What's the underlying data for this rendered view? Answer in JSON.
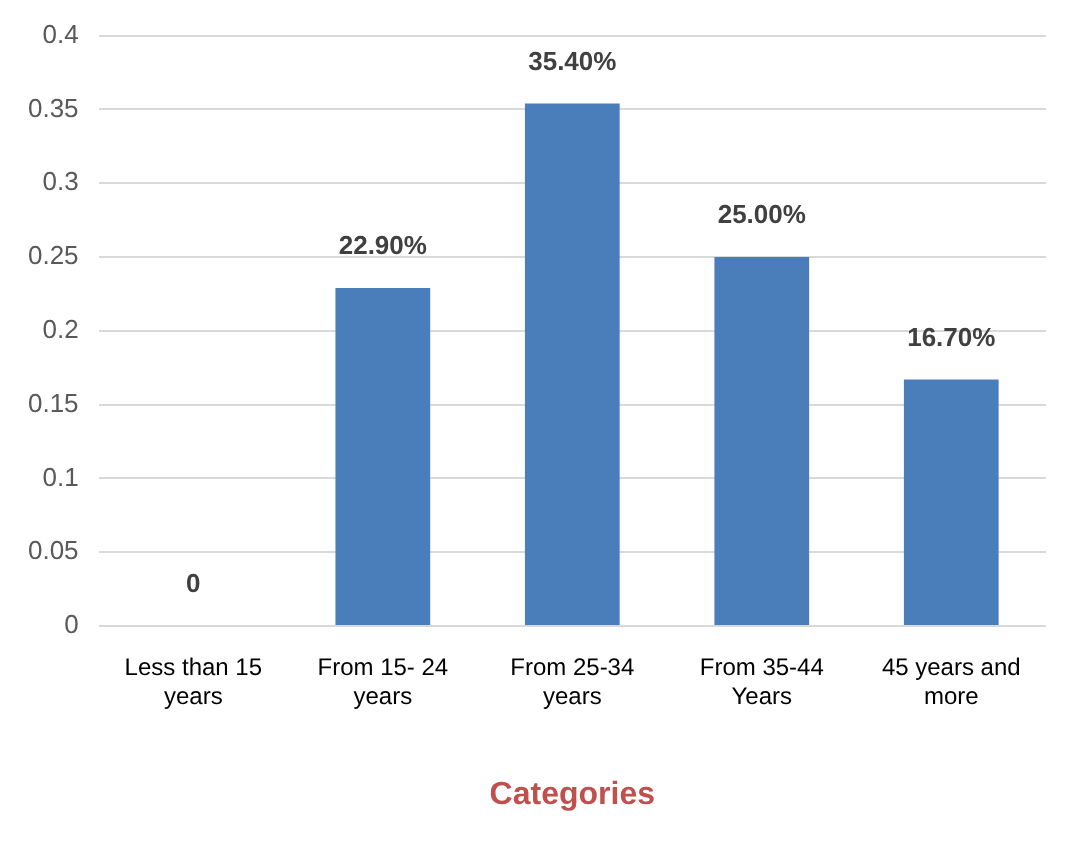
{
  "chart_data": {
    "type": "bar",
    "xlabel": "Categories",
    "categories": [
      "Less than 15 years",
      "From 15- 24 years",
      "From 25-34 years",
      "From 35-44 Years",
      "45 years and more"
    ],
    "values": [
      0,
      0.229,
      0.354,
      0.25,
      0.167
    ],
    "value_labels": [
      "0",
      "22.90%",
      "35.40%",
      "25.00%",
      "16.70%"
    ],
    "color": "#4a7ebb",
    "ylim": [
      0,
      0.4
    ],
    "yticks": [
      0,
      0.05,
      0.1,
      0.15,
      0.2,
      0.25,
      0.3,
      0.35,
      0.4
    ],
    "grid": "y",
    "legend": false
  }
}
